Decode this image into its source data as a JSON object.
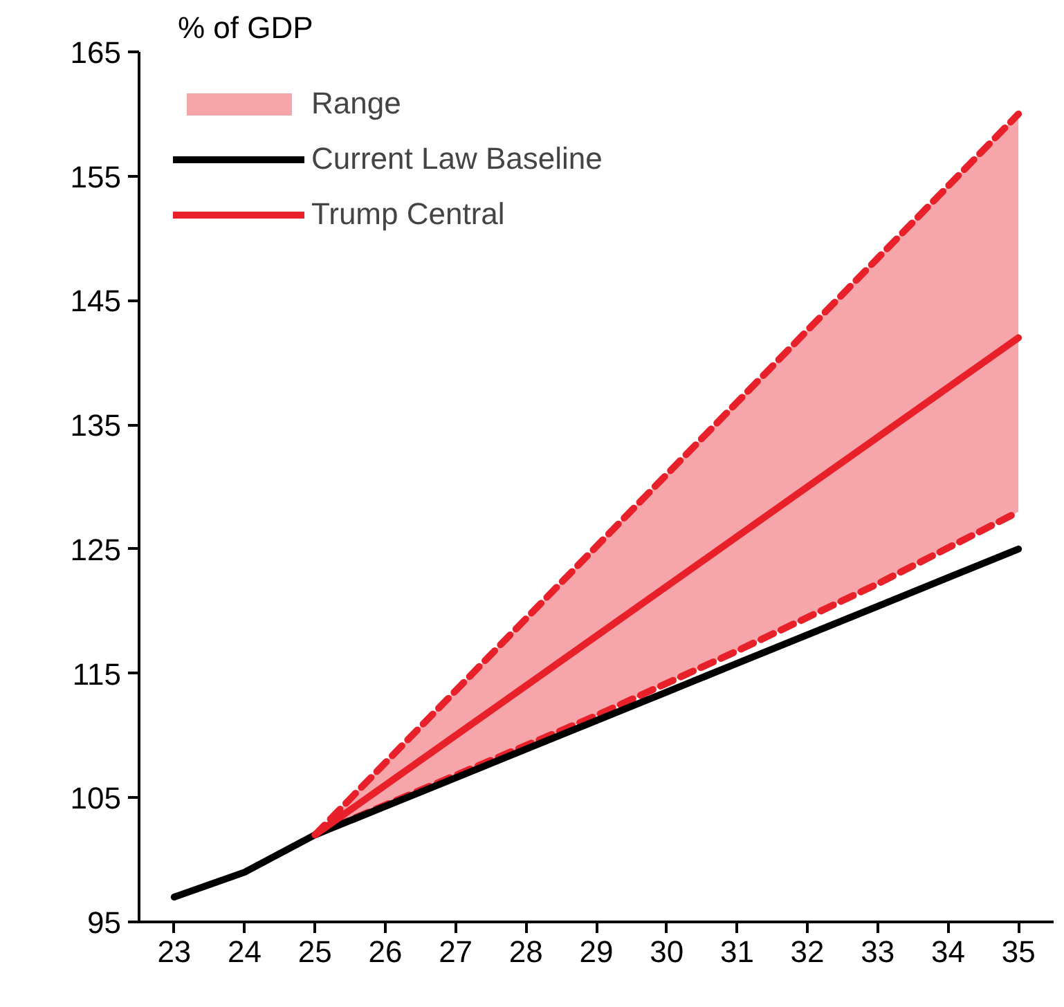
{
  "chart_data": {
    "type": "line",
    "ylabel": "% of GDP",
    "xlim": [
      22.5,
      35.5
    ],
    "ylim": [
      95,
      165
    ],
    "xticks": [
      {
        "value": 23,
        "label": "23"
      },
      {
        "value": 24,
        "label": "24"
      },
      {
        "value": 25,
        "label": "25"
      },
      {
        "value": 26,
        "label": "26"
      },
      {
        "value": 27,
        "label": "27"
      },
      {
        "value": 28,
        "label": "28"
      },
      {
        "value": 29,
        "label": "29"
      },
      {
        "value": 30,
        "label": "30"
      },
      {
        "value": 31,
        "label": "31"
      },
      {
        "value": 32,
        "label": "32"
      },
      {
        "value": 33,
        "label": "33"
      },
      {
        "value": 34,
        "label": "34"
      },
      {
        "value": 35,
        "label": "35"
      }
    ],
    "yticks": [
      95,
      105,
      115,
      125,
      135,
      145,
      155,
      165
    ],
    "grid": false,
    "legend": "top left",
    "marker": "none",
    "series": [
      {
        "name": "Range",
        "line_style": "dashed",
        "color": "#e8202a",
        "x": [
          25,
          27,
          29,
          31,
          33,
          35
        ],
        "values": [
          102,
          106.8,
          111.6,
          116.8,
          122.2,
          128
        ],
        "lower": [
          102,
          106.8,
          111.6,
          116.8,
          122.2,
          128
        ],
        "upper": [
          102,
          113.6,
          125.2,
          136.8,
          148.4,
          160
        ]
      },
      {
        "line_style": "dashed",
        "color": "#e8202a",
        "x": [
          25,
          27,
          29,
          31,
          33,
          35
        ],
        "values": [
          102,
          113.6,
          125.2,
          136.8,
          148.4,
          160
        ]
      },
      {
        "name": "Current Law Baseline",
        "line_style": "solid",
        "color": "#000000",
        "x": [
          23,
          24,
          25,
          26,
          27,
          28,
          29,
          30,
          31,
          32,
          33,
          34,
          35
        ],
        "values": [
          97,
          99,
          102,
          104.3,
          106.6,
          108.9,
          111.2,
          113.5,
          115.8,
          118.1,
          120.4,
          122.7,
          125
        ]
      },
      {
        "name": "Trump Central",
        "line_style": "solid",
        "color": "#e8202a",
        "x": [
          25,
          27,
          29,
          31,
          33,
          35
        ],
        "values": [
          102,
          110,
          118,
          126,
          134,
          142
        ]
      }
    ]
  }
}
